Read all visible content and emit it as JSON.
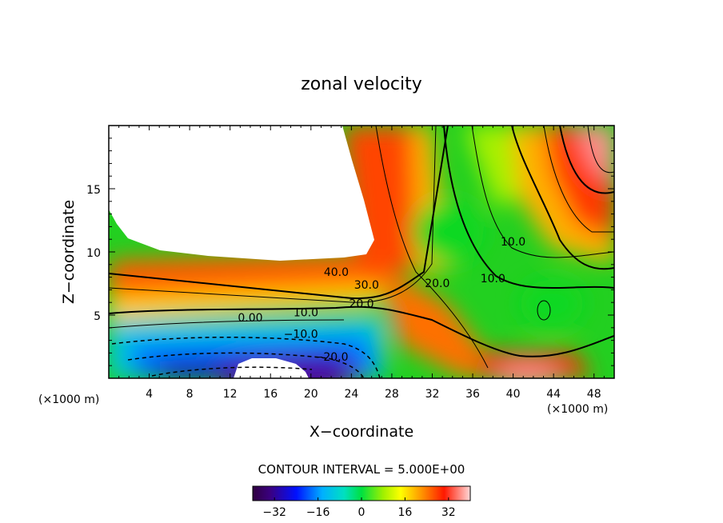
{
  "chart_data": {
    "type": "contour",
    "title": "zonal velocity",
    "xlabel": "X−coordinate",
    "ylabel": "Z−coordinate",
    "x_unit_left": "(×1000 m)",
    "x_unit_right": "(×1000 m)",
    "xlim": [
      0,
      50
    ],
    "ylim": [
      0,
      20
    ],
    "x_ticks": [
      4,
      8,
      12,
      16,
      20,
      24,
      28,
      32,
      36,
      40,
      44,
      48
    ],
    "y_ticks": [
      5,
      10,
      15
    ],
    "contour_labels": [
      {
        "text": "40.0",
        "x": 22.5,
        "y": 8.1
      },
      {
        "text": "30.0",
        "x": 25.5,
        "y": 7.1
      },
      {
        "text": "20.0",
        "x": 25.0,
        "y": 5.6
      },
      {
        "text": "20.0",
        "x": 32.5,
        "y": 7.2
      },
      {
        "text": "10.0",
        "x": 38.0,
        "y": 7.6
      },
      {
        "text": "10.0",
        "x": 40.0,
        "y": 10.5
      },
      {
        "text": "10.0",
        "x": 19.5,
        "y": 4.9
      },
      {
        "text": "0.00",
        "x": 14.0,
        "y": 4.5
      },
      {
        "text": "−10.0",
        "x": 19.0,
        "y": 3.2
      },
      {
        "text": "−20.0",
        "x": 22.0,
        "y": 1.4
      }
    ],
    "contour_interval_text": "CONTOUR INTERVAL = 5.000E+00",
    "colorbar": {
      "min": -40,
      "max": 40,
      "tick_labels": [
        "−32",
        "−16",
        "0",
        "16",
        "32"
      ],
      "tick_values": [
        -32,
        -16,
        0,
        16,
        32
      ]
    }
  }
}
